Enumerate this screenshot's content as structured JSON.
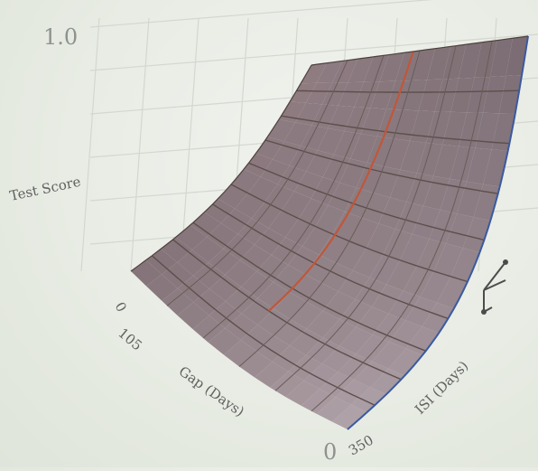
{
  "chart_data": {
    "type": "surface",
    "title": "",
    "zlabel": "Test Score",
    "xlabel": "Gap (Days)",
    "ylabel": "ISI (Days)",
    "x_ticks": [
      "0",
      "105"
    ],
    "y_ticks": [
      "350"
    ],
    "z_ticks": [
      "1.0"
    ],
    "corner_label": "0",
    "zlim": [
      0,
      1.0
    ],
    "grid": true,
    "surface": {
      "color": "#8f7d78",
      "ridge_line_color": "#c0573a",
      "edge_line_color": "#3a5aa0",
      "corner_values": {
        "front_left": 0.25,
        "back_left": 0.98,
        "front_right": 0.0,
        "back_right": 0.85
      }
    }
  }
}
